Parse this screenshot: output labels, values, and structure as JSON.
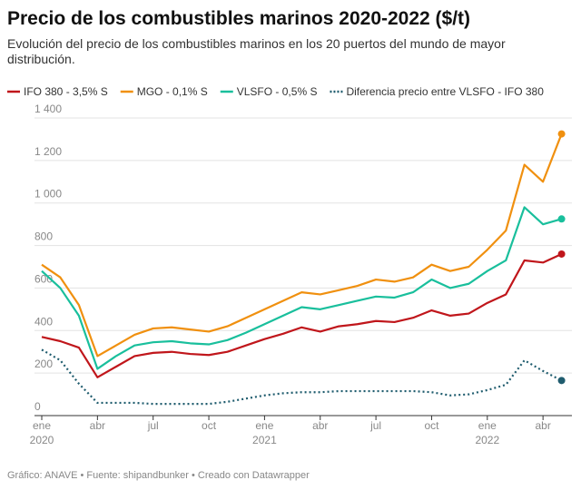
{
  "chart_data": {
    "type": "line",
    "title": "Precio de los combustibles marinos 2020-2022 ($/t)",
    "subtitle": "Evolución del precio de los combustibles marinos en los 20 puertos del mundo de mayor distribución.",
    "footer": "Gráfico: ANAVE • Fuente: shipandbunker • Creado con Datawrapper",
    "x": [
      "2020-01",
      "2020-02",
      "2020-03",
      "2020-04",
      "2020-05",
      "2020-06",
      "2020-07",
      "2020-08",
      "2020-09",
      "2020-10",
      "2020-11",
      "2020-12",
      "2021-01",
      "2021-02",
      "2021-03",
      "2021-04",
      "2021-05",
      "2021-06",
      "2021-07",
      "2021-08",
      "2021-09",
      "2021-10",
      "2021-11",
      "2021-12",
      "2022-01",
      "2022-02",
      "2022-03",
      "2022-04",
      "2022-05"
    ],
    "series": [
      {
        "name": "IFO 380 - 3,5% S",
        "color": "#c0161b",
        "dashed": false,
        "values": [
          370,
          350,
          320,
          180,
          230,
          280,
          295,
          300,
          290,
          285,
          300,
          330,
          360,
          385,
          415,
          395,
          420,
          430,
          445,
          440,
          460,
          495,
          470,
          480,
          530,
          570,
          730,
          720,
          760
        ]
      },
      {
        "name": "MGO - 0,1% S",
        "color": "#f0900f",
        "dashed": false,
        "values": [
          710,
          650,
          520,
          280,
          330,
          380,
          410,
          415,
          405,
          395,
          420,
          460,
          500,
          540,
          580,
          570,
          590,
          610,
          640,
          630,
          650,
          710,
          680,
          700,
          780,
          870,
          1180,
          1100,
          1325
        ]
      },
      {
        "name": "VLSFO - 0,5% S",
        "color": "#19bf9c",
        "dashed": false,
        "values": [
          680,
          600,
          470,
          220,
          280,
          330,
          345,
          350,
          340,
          335,
          355,
          390,
          430,
          470,
          510,
          500,
          520,
          540,
          560,
          555,
          580,
          640,
          600,
          620,
          680,
          730,
          980,
          900,
          925
        ]
      },
      {
        "name": "Diferencia precio entre VLSFO - IFO 380",
        "color": "#1f5c6e",
        "dashed": true,
        "values": [
          310,
          260,
          150,
          60,
          60,
          60,
          55,
          55,
          55,
          55,
          65,
          80,
          95,
          105,
          110,
          110,
          115,
          115,
          115,
          115,
          115,
          110,
          95,
          100,
          120,
          145,
          260,
          210,
          165
        ]
      }
    ],
    "ylim": [
      0,
      1400
    ],
    "yticks": [
      0,
      200,
      400,
      600,
      800,
      {
        "value": 1000,
        "label": "1 000"
      },
      {
        "value": 1200,
        "label": "1 200"
      },
      {
        "value": 1400,
        "label": "1 400"
      }
    ],
    "xticks": [
      {
        "value": "2020-01",
        "label": "ene 2020"
      },
      {
        "value": "2020-04",
        "label": "abr"
      },
      {
        "value": "2020-07",
        "label": "jul"
      },
      {
        "value": "2020-10",
        "label": "oct"
      },
      {
        "value": "2021-01",
        "label": "ene 2021"
      },
      {
        "value": "2021-04",
        "label": "abr"
      },
      {
        "value": "2021-07",
        "label": "jul"
      },
      {
        "value": "2021-10",
        "label": "oct"
      },
      {
        "value": "2022-01",
        "label": "ene 2022"
      },
      {
        "value": "2022-04",
        "label": "abr"
      }
    ],
    "grid": true,
    "legend": "top"
  }
}
